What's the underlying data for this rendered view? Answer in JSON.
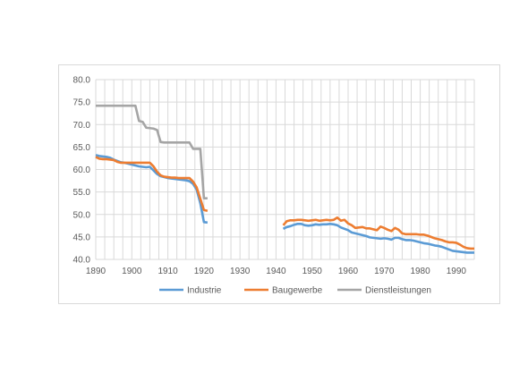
{
  "chart_data": {
    "type": "line",
    "title": "",
    "xlabel": "",
    "ylabel": "",
    "xlim": [
      1890,
      1995
    ],
    "ylim": [
      40,
      80
    ],
    "x_ticks": [
      "1890",
      "1900",
      "1910",
      "1920",
      "1930",
      "1940",
      "1950",
      "1960",
      "1970",
      "1980",
      "1990"
    ],
    "y_ticks": [
      "80.0",
      "75.0",
      "70.0",
      "65.0",
      "60.0",
      "55.0",
      "50.0",
      "45.0",
      "40.0"
    ],
    "grid": true,
    "legend_position": "bottom",
    "series": [
      {
        "name": "Industrie",
        "color": "#5b9bd5",
        "segments": [
          [
            [
              1890,
              63.2
            ],
            [
              1891,
              63.0
            ],
            [
              1892,
              62.9
            ],
            [
              1893,
              62.8
            ],
            [
              1894,
              62.6
            ],
            [
              1895,
              62.2
            ],
            [
              1896,
              61.9
            ],
            [
              1897,
              61.6
            ],
            [
              1898,
              61.5
            ],
            [
              1899,
              61.3
            ],
            [
              1900,
              61.1
            ],
            [
              1901,
              60.9
            ],
            [
              1902,
              60.7
            ],
            [
              1903,
              60.6
            ],
            [
              1904,
              60.5
            ],
            [
              1905,
              60.6
            ],
            [
              1906,
              59.8
            ],
            [
              1907,
              59.0
            ],
            [
              1908,
              58.5
            ],
            [
              1909,
              58.3
            ],
            [
              1910,
              58.1
            ],
            [
              1911,
              58.0
            ],
            [
              1912,
              57.9
            ],
            [
              1913,
              57.8
            ],
            [
              1914,
              57.7
            ],
            [
              1915,
              57.6
            ],
            [
              1916,
              57.4
            ],
            [
              1917,
              56.8
            ],
            [
              1918,
              55.5
            ],
            [
              1919,
              52.5
            ],
            [
              1920,
              48.3
            ],
            [
              1921,
              48.2
            ]
          ],
          [
            [
              1942,
              46.8
            ],
            [
              1943,
              47.2
            ],
            [
              1944,
              47.4
            ],
            [
              1945,
              47.7
            ],
            [
              1946,
              47.9
            ],
            [
              1947,
              47.9
            ],
            [
              1948,
              47.6
            ],
            [
              1949,
              47.5
            ],
            [
              1950,
              47.6
            ],
            [
              1951,
              47.8
            ],
            [
              1952,
              47.7
            ],
            [
              1953,
              47.8
            ],
            [
              1954,
              47.8
            ],
            [
              1955,
              47.9
            ],
            [
              1956,
              47.8
            ],
            [
              1957,
              47.6
            ],
            [
              1958,
              47.1
            ],
            [
              1959,
              46.8
            ],
            [
              1960,
              46.5
            ],
            [
              1961,
              46.0
            ],
            [
              1962,
              45.8
            ],
            [
              1963,
              45.6
            ],
            [
              1964,
              45.4
            ],
            [
              1965,
              45.2
            ],
            [
              1966,
              44.9
            ],
            [
              1967,
              44.8
            ],
            [
              1968,
              44.7
            ],
            [
              1969,
              44.6
            ],
            [
              1970,
              44.7
            ],
            [
              1971,
              44.6
            ],
            [
              1972,
              44.4
            ],
            [
              1973,
              44.8
            ],
            [
              1974,
              44.8
            ],
            [
              1975,
              44.5
            ],
            [
              1976,
              44.3
            ],
            [
              1977,
              44.3
            ],
            [
              1978,
              44.2
            ],
            [
              1979,
              44.0
            ],
            [
              1980,
              43.8
            ],
            [
              1981,
              43.6
            ],
            [
              1982,
              43.5
            ],
            [
              1983,
              43.3
            ],
            [
              1984,
              43.1
            ],
            [
              1985,
              43.0
            ],
            [
              1986,
              42.8
            ],
            [
              1987,
              42.5
            ],
            [
              1988,
              42.2
            ],
            [
              1989,
              41.9
            ],
            [
              1990,
              41.8
            ],
            [
              1991,
              41.7
            ],
            [
              1992,
              41.6
            ],
            [
              1993,
              41.5
            ],
            [
              1994,
              41.5
            ],
            [
              1995,
              41.5
            ]
          ]
        ]
      },
      {
        "name": "Baugewerbe",
        "color": "#ed7d31",
        "segments": [
          [
            [
              1890,
              62.8
            ],
            [
              1891,
              62.4
            ],
            [
              1892,
              62.3
            ],
            [
              1893,
              62.3
            ],
            [
              1894,
              62.2
            ],
            [
              1895,
              62.1
            ],
            [
              1896,
              61.7
            ],
            [
              1897,
              61.5
            ],
            [
              1898,
              61.5
            ],
            [
              1899,
              61.5
            ],
            [
              1900,
              61.5
            ],
            [
              1901,
              61.5
            ],
            [
              1902,
              61.5
            ],
            [
              1903,
              61.5
            ],
            [
              1904,
              61.5
            ],
            [
              1905,
              61.5
            ],
            [
              1906,
              60.7
            ],
            [
              1907,
              59.5
            ],
            [
              1908,
              58.7
            ],
            [
              1909,
              58.4
            ],
            [
              1910,
              58.3
            ],
            [
              1911,
              58.2
            ],
            [
              1912,
              58.2
            ],
            [
              1913,
              58.1
            ],
            [
              1914,
              58.1
            ],
            [
              1915,
              58.1
            ],
            [
              1916,
              58.1
            ],
            [
              1917,
              57.3
            ],
            [
              1918,
              56.0
            ],
            [
              1919,
              53.5
            ],
            [
              1920,
              51.0
            ],
            [
              1921,
              50.8
            ]
          ],
          [
            [
              1942,
              47.6
            ],
            [
              1943,
              48.5
            ],
            [
              1944,
              48.7
            ],
            [
              1945,
              48.7
            ],
            [
              1946,
              48.8
            ],
            [
              1947,
              48.8
            ],
            [
              1948,
              48.7
            ],
            [
              1949,
              48.6
            ],
            [
              1950,
              48.7
            ],
            [
              1951,
              48.8
            ],
            [
              1952,
              48.6
            ],
            [
              1953,
              48.7
            ],
            [
              1954,
              48.8
            ],
            [
              1955,
              48.7
            ],
            [
              1956,
              48.8
            ],
            [
              1957,
              49.3
            ],
            [
              1958,
              48.6
            ],
            [
              1959,
              48.8
            ],
            [
              1960,
              48.0
            ],
            [
              1961,
              47.6
            ],
            [
              1962,
              47.0
            ],
            [
              1963,
              47.1
            ],
            [
              1964,
              47.2
            ],
            [
              1965,
              46.9
            ],
            [
              1966,
              46.9
            ],
            [
              1967,
              46.7
            ],
            [
              1968,
              46.5
            ],
            [
              1969,
              47.3
            ],
            [
              1970,
              47.0
            ],
            [
              1971,
              46.6
            ],
            [
              1972,
              46.3
            ],
            [
              1973,
              47.0
            ],
            [
              1974,
              46.6
            ],
            [
              1975,
              45.8
            ],
            [
              1976,
              45.6
            ],
            [
              1977,
              45.6
            ],
            [
              1978,
              45.6
            ],
            [
              1979,
              45.6
            ],
            [
              1980,
              45.5
            ],
            [
              1981,
              45.5
            ],
            [
              1982,
              45.3
            ],
            [
              1983,
              45.0
            ],
            [
              1984,
              44.7
            ],
            [
              1985,
              44.5
            ],
            [
              1986,
              44.3
            ],
            [
              1987,
              44.0
            ],
            [
              1988,
              43.8
            ],
            [
              1989,
              43.8
            ],
            [
              1990,
              43.7
            ],
            [
              1991,
              43.3
            ],
            [
              1992,
              42.8
            ],
            [
              1993,
              42.5
            ],
            [
              1994,
              42.4
            ],
            [
              1995,
              42.4
            ]
          ]
        ]
      },
      {
        "name": "Dienstleistungen",
        "color": "#a5a5a5",
        "segments": [
          [
            [
              1890,
              74.2
            ],
            [
              1891,
              74.2
            ],
            [
              1892,
              74.2
            ],
            [
              1893,
              74.2
            ],
            [
              1894,
              74.2
            ],
            [
              1895,
              74.2
            ],
            [
              1896,
              74.2
            ],
            [
              1897,
              74.2
            ],
            [
              1898,
              74.2
            ],
            [
              1899,
              74.2
            ],
            [
              1900,
              74.2
            ],
            [
              1901,
              74.2
            ],
            [
              1902,
              70.8
            ],
            [
              1903,
              70.6
            ],
            [
              1904,
              69.3
            ],
            [
              1905,
              69.2
            ],
            [
              1906,
              69.1
            ],
            [
              1907,
              68.8
            ],
            [
              1908,
              66.1
            ],
            [
              1909,
              66.0
            ],
            [
              1910,
              66.0
            ],
            [
              1911,
              66.0
            ],
            [
              1912,
              66.0
            ],
            [
              1913,
              66.0
            ],
            [
              1914,
              66.0
            ],
            [
              1915,
              66.0
            ],
            [
              1916,
              66.0
            ],
            [
              1917,
              64.6
            ],
            [
              1918,
              64.6
            ],
            [
              1919,
              64.6
            ],
            [
              1920,
              53.6
            ],
            [
              1921,
              53.6
            ]
          ]
        ]
      }
    ]
  }
}
